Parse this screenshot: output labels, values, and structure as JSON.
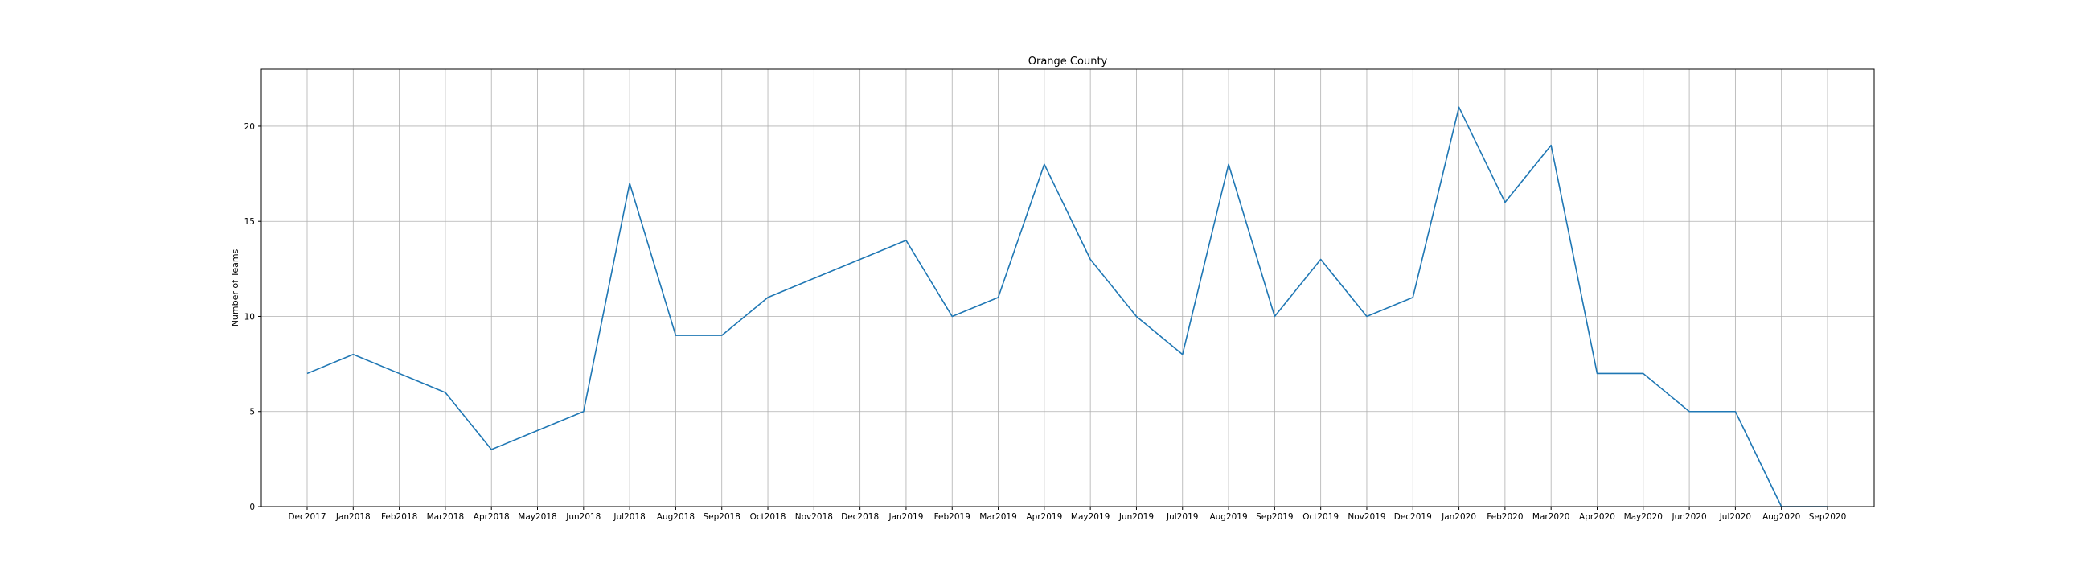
{
  "chart_data": {
    "type": "line",
    "title": "Orange County",
    "xlabel": "",
    "ylabel": "Number of Teams",
    "categories": [
      "Dec2017",
      "Jan2018",
      "Feb2018",
      "Mar2018",
      "Apr2018",
      "May2018",
      "Jun2018",
      "Jul2018",
      "Aug2018",
      "Sep2018",
      "Oct2018",
      "Nov2018",
      "Dec2018",
      "Jan2019",
      "Feb2019",
      "Mar2019",
      "Apr2019",
      "May2019",
      "Jun2019",
      "Jul2019",
      "Aug2019",
      "Sep2019",
      "Oct2019",
      "Nov2019",
      "Dec2019",
      "Jan2020",
      "Feb2020",
      "Mar2020",
      "Apr2020",
      "May2020",
      "Jun2020",
      "Jul2020",
      "Aug2020",
      "Sep2020"
    ],
    "series": [
      {
        "name": "",
        "values": [
          7,
          8,
          7,
          6,
          3,
          4,
          5,
          17,
          9,
          9,
          11,
          12,
          13,
          14,
          10,
          11,
          18,
          13,
          10,
          8,
          18,
          10,
          13,
          10,
          11,
          21,
          16,
          19,
          7,
          7,
          5,
          5,
          0,
          0
        ],
        "color": "#1f77b4"
      }
    ],
    "yticks": [
      0,
      5,
      10,
      15,
      20
    ],
    "ylim": [
      0,
      23
    ],
    "grid": true
  }
}
